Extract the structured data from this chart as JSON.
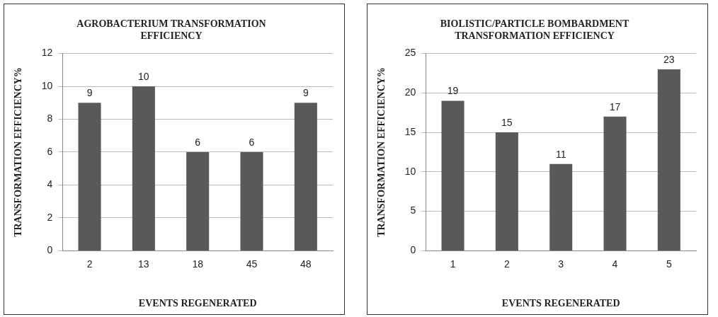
{
  "chart_data": [
    {
      "type": "bar",
      "title": "AGROBACTERIUM TRANSFORMATION\nEFFICIENCY",
      "xlabel": "EVENTS REGENERATED",
      "ylabel": "TRANSFORMATION EFFICIENCY%",
      "categories": [
        "2",
        "13",
        "18",
        "45",
        "48"
      ],
      "values": [
        9,
        10,
        6,
        6,
        9
      ],
      "color": "#595959",
      "ylim": [
        0,
        12
      ],
      "yticks": [
        0,
        2,
        4,
        6,
        8,
        10,
        12
      ],
      "grid": "y",
      "data_labels": true
    },
    {
      "type": "bar",
      "title": "BIOLISTIC/PARTICLE BOMBARDMENT\nTRANSFORMATION EFFICIENCY",
      "xlabel": "EVENTS REGENERATED",
      "ylabel": "TRANSFORMATION EFFICIENCY%",
      "categories": [
        "1",
        "2",
        "3",
        "4",
        "5"
      ],
      "values": [
        19,
        15,
        11,
        17,
        23
      ],
      "color": "#595959",
      "ylim": [
        0,
        25
      ],
      "yticks": [
        0,
        5,
        10,
        15,
        20,
        25
      ],
      "grid": "y",
      "data_labels": true
    }
  ]
}
